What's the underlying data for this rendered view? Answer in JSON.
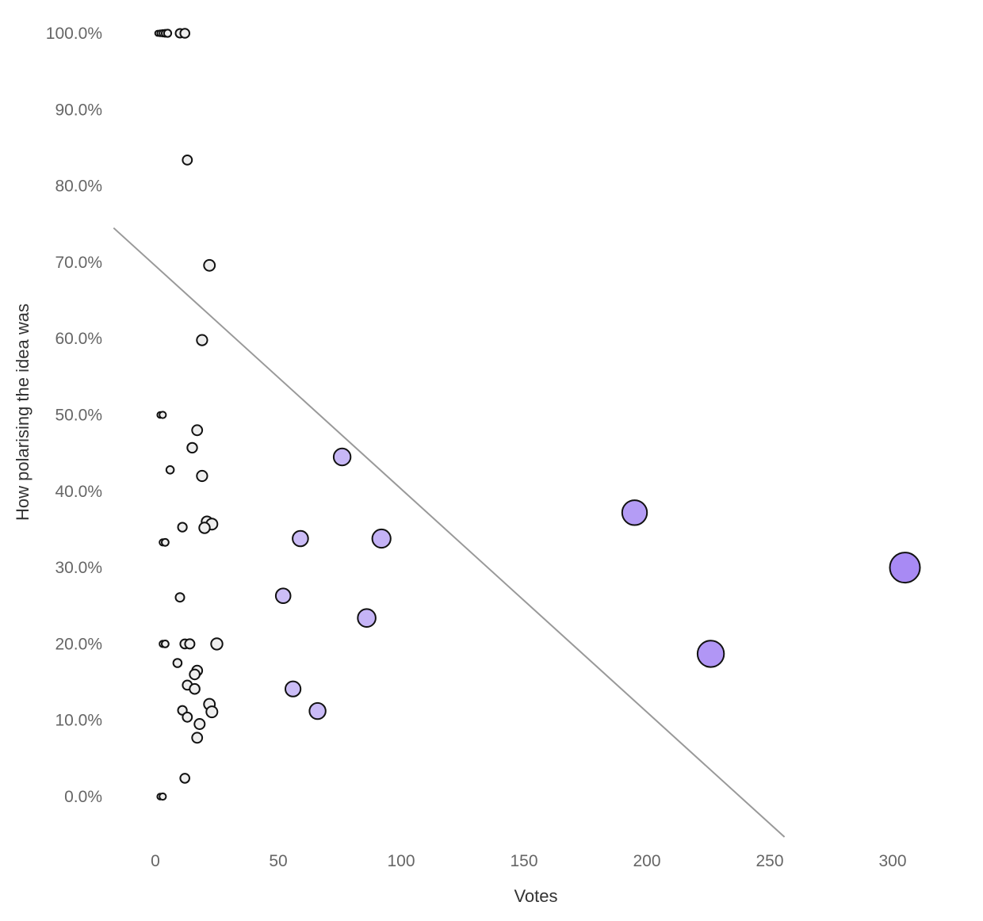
{
  "chart_data": {
    "type": "scatter",
    "title": "",
    "xlabel": "Votes",
    "ylabel": "How polarising the idea was",
    "xlim": [
      -17,
      345
    ],
    "ylim": [
      -5.5,
      102
    ],
    "x_ticks": [
      0,
      50,
      100,
      150,
      200,
      250,
      300
    ],
    "y_ticks": [
      0,
      10,
      20,
      30,
      40,
      50,
      60,
      70,
      80,
      90,
      100
    ],
    "y_tick_labels": [
      "0.0%",
      "10.0%",
      "20.0%",
      "30.0%",
      "40.0%",
      "50.0%",
      "60.0%",
      "70.0%",
      "80.0%",
      "90.0%",
      "100.0%"
    ],
    "x_tick_labels": [
      "0",
      "50",
      "100",
      "150",
      "200",
      "250",
      "300"
    ],
    "grid": false,
    "legend": "none",
    "size_and_color_encode": "votes",
    "color_low": "#e6e3f8",
    "color_high": "#a88af4",
    "trendline": {
      "x": [
        -17,
        256
      ],
      "y": [
        74.5,
        -5.3
      ],
      "color": "#999999"
    },
    "points": [
      {
        "x": 1,
        "y": 100
      },
      {
        "x": 2,
        "y": 100
      },
      {
        "x": 3,
        "y": 100
      },
      {
        "x": 4,
        "y": 100
      },
      {
        "x": 5,
        "y": 100
      },
      {
        "x": 10,
        "y": 100
      },
      {
        "x": 12,
        "y": 100
      },
      {
        "x": 13,
        "y": 83.4
      },
      {
        "x": 22,
        "y": 69.6
      },
      {
        "x": 19,
        "y": 59.8
      },
      {
        "x": 2,
        "y": 50
      },
      {
        "x": 3,
        "y": 50
      },
      {
        "x": 17,
        "y": 48
      },
      {
        "x": 15,
        "y": 45.7
      },
      {
        "x": 76,
        "y": 44.5
      },
      {
        "x": 6,
        "y": 42.8
      },
      {
        "x": 19,
        "y": 42
      },
      {
        "x": 195,
        "y": 37.2
      },
      {
        "x": 21,
        "y": 36
      },
      {
        "x": 23,
        "y": 35.7
      },
      {
        "x": 11,
        "y": 35.3
      },
      {
        "x": 20,
        "y": 35.2
      },
      {
        "x": 59,
        "y": 33.8
      },
      {
        "x": 92,
        "y": 33.8
      },
      {
        "x": 3,
        "y": 33.3
      },
      {
        "x": 4,
        "y": 33.3
      },
      {
        "x": 305,
        "y": 30
      },
      {
        "x": 52,
        "y": 26.3
      },
      {
        "x": 10,
        "y": 26.1
      },
      {
        "x": 86,
        "y": 23.4
      },
      {
        "x": 3,
        "y": 20
      },
      {
        "x": 4,
        "y": 20
      },
      {
        "x": 12,
        "y": 20
      },
      {
        "x": 14,
        "y": 20
      },
      {
        "x": 25,
        "y": 20
      },
      {
        "x": 226,
        "y": 18.7
      },
      {
        "x": 9,
        "y": 17.5
      },
      {
        "x": 17,
        "y": 16.5
      },
      {
        "x": 16,
        "y": 16
      },
      {
        "x": 13,
        "y": 14.6
      },
      {
        "x": 16,
        "y": 14.1
      },
      {
        "x": 56,
        "y": 14.1
      },
      {
        "x": 22,
        "y": 12.1
      },
      {
        "x": 11,
        "y": 11.3
      },
      {
        "x": 23,
        "y": 11.1
      },
      {
        "x": 66,
        "y": 11.2
      },
      {
        "x": 13,
        "y": 10.4
      },
      {
        "x": 18,
        "y": 9.5
      },
      {
        "x": 17,
        "y": 7.7
      },
      {
        "x": 12,
        "y": 2.4
      },
      {
        "x": 2,
        "y": 0
      },
      {
        "x": 3,
        "y": 0
      }
    ]
  }
}
